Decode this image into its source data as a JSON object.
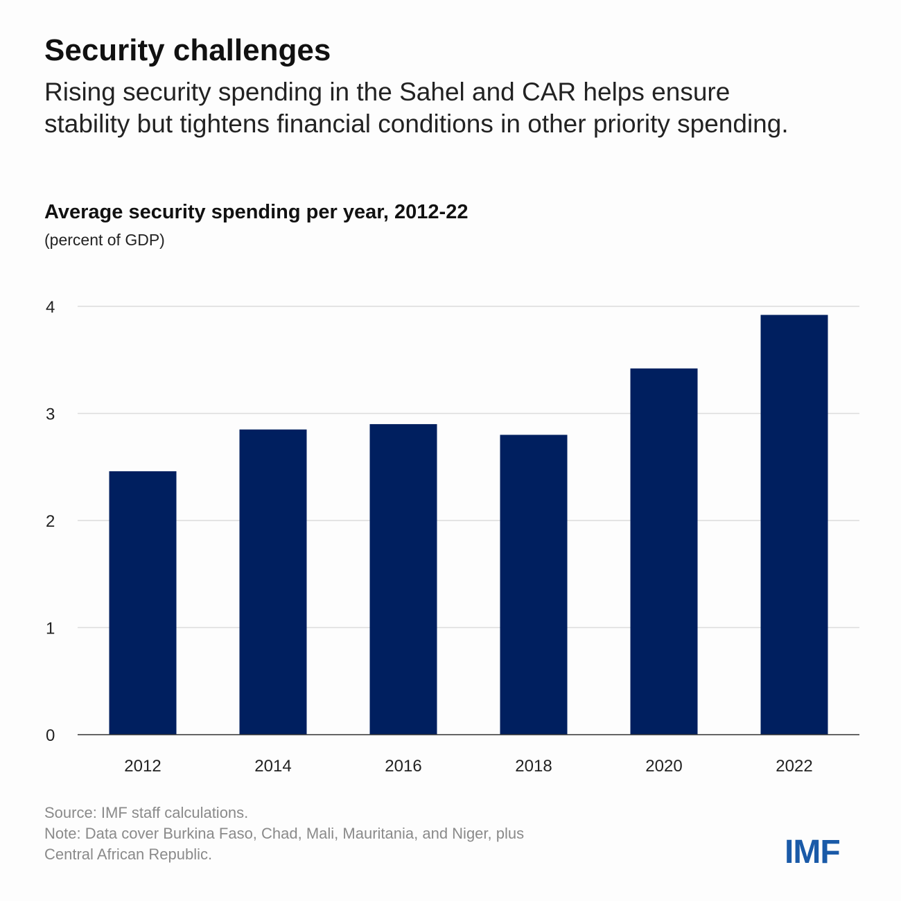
{
  "header": {
    "title": "Security challenges",
    "subtitle": "Rising security spending in the Sahel and CAR helps ensure stability but tightens financial conditions in other priority spending."
  },
  "chart_data": {
    "type": "bar",
    "title": "Average security spending per year, 2012-22",
    "unit_label": "(percent of GDP)",
    "xlabel": "",
    "ylabel": "percent of GDP",
    "categories": [
      "2012",
      "2014",
      "2016",
      "2018",
      "2020",
      "2022"
    ],
    "values": [
      2.46,
      2.85,
      2.9,
      2.8,
      3.42,
      3.92
    ],
    "ylim": [
      0,
      4
    ],
    "yticks": [
      "0",
      "1",
      "2",
      "3",
      "4"
    ],
    "grid": true,
    "bar_color": "#001f5f"
  },
  "footer": {
    "source": "Source: IMF staff calculations.",
    "note_line1": "Note: Data cover Burkina Faso, Chad, Mali, Mauritania, and Niger, plus",
    "note_line2": "Central African Republic.",
    "logo": "IMF",
    "logo_color": "#1a5aa8"
  }
}
